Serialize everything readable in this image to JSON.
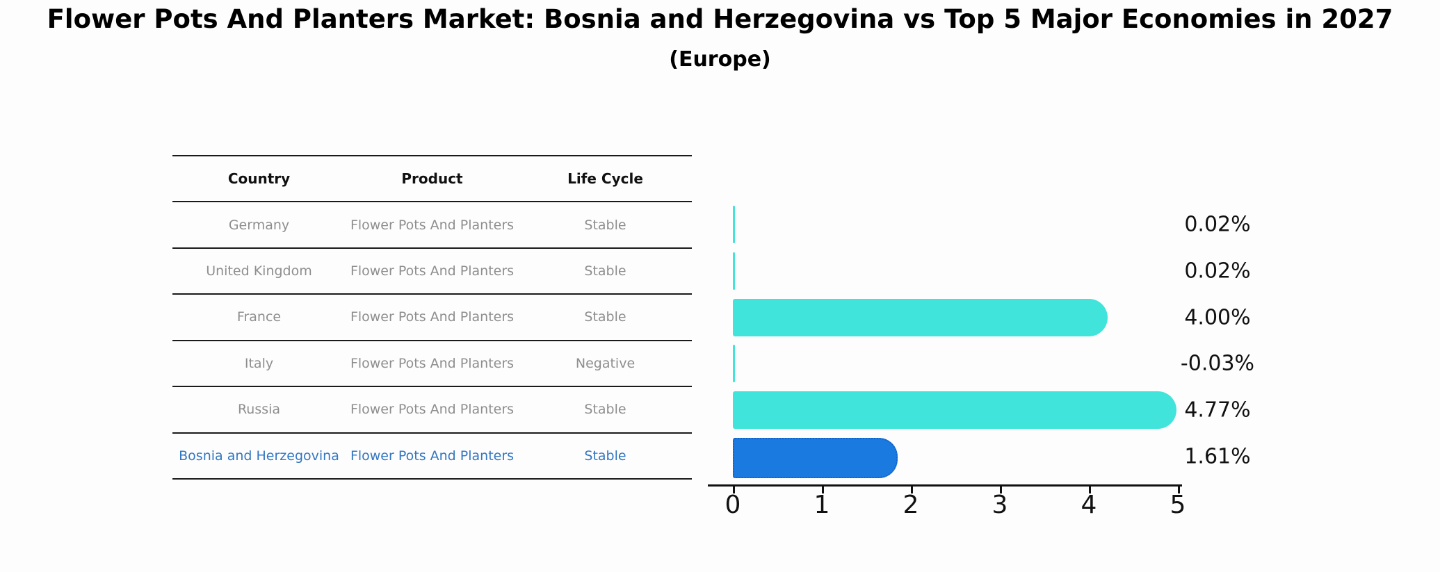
{
  "title": "Flower Pots And Planters Market: Bosnia and Herzegovina vs Top 5 Major Economies in 2027",
  "subtitle": "(Europe)",
  "table": {
    "headers": [
      "Country",
      "Product",
      "Life Cycle"
    ],
    "rows": [
      {
        "country": "Germany",
        "product": "Flower Pots And Planters",
        "life_cycle": "Stable"
      },
      {
        "country": "United Kingdom",
        "product": "Flower Pots And Planters",
        "life_cycle": "Stable"
      },
      {
        "country": "France",
        "product": "Flower Pots And Planters",
        "life_cycle": "Stable"
      },
      {
        "country": "Italy",
        "product": "Flower Pots And Planters",
        "life_cycle": "Negative"
      },
      {
        "country": "Russia",
        "product": "Flower Pots And Planters",
        "life_cycle": "Stable"
      },
      {
        "country": "Bosnia and Herzegovina",
        "product": "Flower Pots And Planters",
        "life_cycle": "Stable"
      }
    ]
  },
  "chart_data": {
    "type": "bar",
    "orientation": "horizontal",
    "title": "Flower Pots And Planters Market: Bosnia and Herzegovina vs Top 5 Major Economies in 2027 (Europe)",
    "categories": [
      "Germany",
      "United Kingdom",
      "France",
      "Italy",
      "Russia",
      "Bosnia and Herzegovina"
    ],
    "values": [
      0.02,
      0.02,
      4.0,
      -0.03,
      4.77,
      1.61
    ],
    "value_labels": [
      "0.02%",
      "0.02%",
      "4.00%",
      "-0.03%",
      "4.77%",
      "1.61%"
    ],
    "x_ticks": [
      "0",
      "1",
      "2",
      "3",
      "4",
      "5"
    ],
    "xlim": [
      0,
      5
    ],
    "grid": false,
    "legend": false,
    "highlight_index": 5
  },
  "colors": {
    "background": "#fdfdfd",
    "bar_color": "#40e4db",
    "highlight_bar": "#1b7ae0",
    "highlight_border": "#0e62c9",
    "highlight_text": "#3377c2",
    "table_line": "#1a1a1a",
    "cell_text": "#8e8e8e",
    "header_text": "#111111",
    "axis": "#111111"
  }
}
